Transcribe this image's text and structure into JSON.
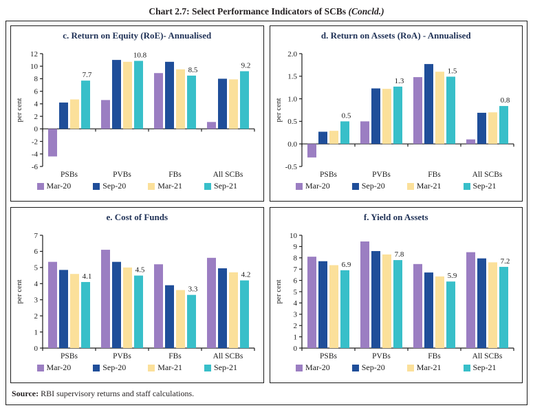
{
  "page": {
    "title": "Chart 2.7: Select Performance Indicators of SCBs ",
    "title_suffix": "(Concld.)",
    "source_label": "Source:",
    "source_text": " RBI supervisory returns and staff calculations."
  },
  "colors": {
    "series": [
      "#9b7ec2",
      "#1f4e99",
      "#fbe09a",
      "#38bfc9"
    ],
    "panel_title": "#1f3156",
    "axis": "#1a1a1a"
  },
  "legend": [
    "Mar-20",
    "Sep-20",
    "Mar-21",
    "Sep-21"
  ],
  "chart_data": [
    {
      "id": "roe",
      "type": "bar",
      "title": "c. Return on Equity (RoE)- Annualised",
      "ylabel": "per cent",
      "categories": [
        "PSBs",
        "PVBs",
        "FBs",
        "All SCBs"
      ],
      "ylim": [
        -6,
        12
      ],
      "ytick_step": 2,
      "ytick_decimals": 0,
      "grid": false,
      "legend_position": "bottom",
      "series": [
        {
          "name": "Mar-20",
          "values": [
            -4.4,
            4.6,
            8.9,
            1.1
          ]
        },
        {
          "name": "Sep-20",
          "values": [
            4.2,
            11.0,
            10.7,
            8.0
          ]
        },
        {
          "name": "Mar-21",
          "values": [
            4.7,
            10.7,
            9.5,
            7.9
          ]
        },
        {
          "name": "Sep-21",
          "values": [
            7.7,
            10.85,
            8.5,
            9.2
          ]
        }
      ],
      "annotations": [
        "7.7",
        "10.8",
        "8.5",
        "9.2"
      ]
    },
    {
      "id": "roa",
      "type": "bar",
      "title": "d. Return on Assets (RoA) - Annualised",
      "ylabel": "per cent",
      "categories": [
        "PSBs",
        "PVBs",
        "FBs",
        "All SCBs"
      ],
      "ylim": [
        -0.5,
        2.0
      ],
      "ytick_step": 0.5,
      "ytick_decimals": 1,
      "grid": false,
      "legend_position": "bottom",
      "series": [
        {
          "name": "Mar-20",
          "values": [
            -0.3,
            0.5,
            1.48,
            0.1
          ]
        },
        {
          "name": "Sep-20",
          "values": [
            0.27,
            1.23,
            1.77,
            0.69
          ]
        },
        {
          "name": "Mar-21",
          "values": [
            0.29,
            1.22,
            1.6,
            0.7
          ]
        },
        {
          "name": "Sep-21",
          "values": [
            0.5,
            1.27,
            1.49,
            0.84
          ]
        }
      ],
      "annotations": [
        "0.5",
        "1.3",
        "1.5",
        "0.8"
      ]
    },
    {
      "id": "cof",
      "type": "bar",
      "title": "e. Cost of Funds",
      "ylabel": "per cent",
      "categories": [
        "PSBs",
        "PVBs",
        "FBs",
        "All SCBs"
      ],
      "ylim": [
        0,
        7
      ],
      "ytick_step": 1,
      "ytick_decimals": 0,
      "grid": false,
      "legend_position": "bottom",
      "series": [
        {
          "name": "Mar-20",
          "values": [
            5.35,
            6.1,
            5.2,
            5.6
          ]
        },
        {
          "name": "Sep-20",
          "values": [
            4.85,
            5.35,
            3.9,
            4.95
          ]
        },
        {
          "name": "Mar-21",
          "values": [
            4.6,
            5.0,
            3.6,
            4.7
          ]
        },
        {
          "name": "Sep-21",
          "values": [
            4.1,
            4.5,
            3.3,
            4.2
          ]
        }
      ],
      "annotations": [
        "4.1",
        "4.5",
        "3.3",
        "4.2"
      ]
    },
    {
      "id": "yoa",
      "type": "bar",
      "title": "f. Yield on Assets",
      "ylabel": "per cent",
      "categories": [
        "PSBs",
        "PVBs",
        "FBs",
        "All SCBs"
      ],
      "ylim": [
        0,
        10
      ],
      "ytick_step": 1,
      "ytick_decimals": 0,
      "grid": false,
      "legend_position": "bottom",
      "series": [
        {
          "name": "Mar-20",
          "values": [
            8.1,
            9.45,
            7.45,
            8.5
          ]
        },
        {
          "name": "Sep-20",
          "values": [
            7.7,
            8.6,
            6.7,
            7.95
          ]
        },
        {
          "name": "Mar-21",
          "values": [
            7.35,
            8.3,
            6.35,
            7.6
          ]
        },
        {
          "name": "Sep-21",
          "values": [
            6.9,
            7.8,
            5.9,
            7.2
          ]
        }
      ],
      "annotations": [
        "6.9",
        "7.8",
        "5.9",
        "7.2"
      ]
    }
  ]
}
